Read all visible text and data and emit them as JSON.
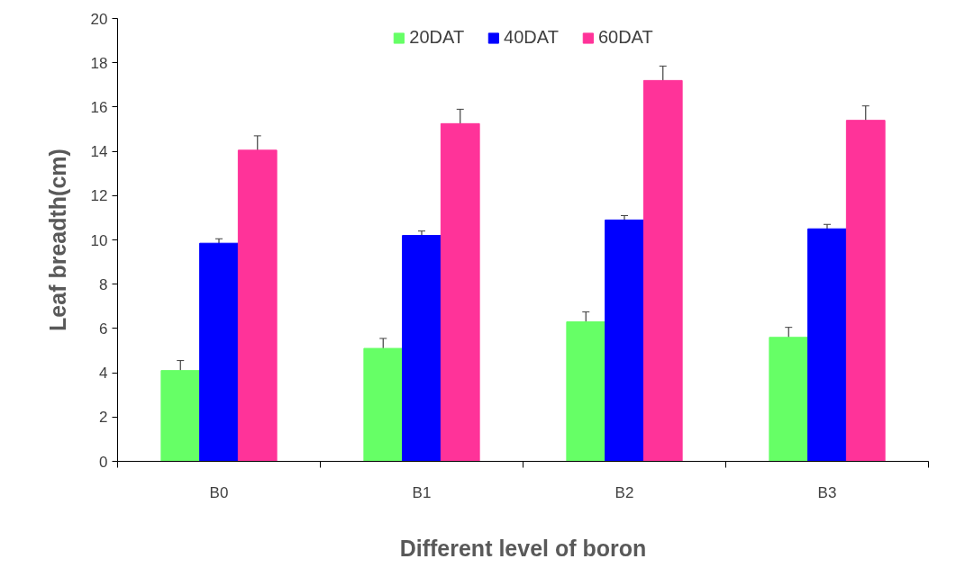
{
  "chart_data": {
    "type": "bar",
    "xlabel": "Different level of boron",
    "ylabel": "Leaf breadth(cm)",
    "categories": [
      "B0",
      "B1",
      "B2",
      "B3"
    ],
    "series": [
      {
        "name": "20DAT",
        "color": "#66ff66",
        "values": [
          4.1,
          5.1,
          6.3,
          5.6
        ],
        "errors": [
          0.45,
          0.45,
          0.45,
          0.45
        ]
      },
      {
        "name": "40DAT",
        "color": "#0000ff",
        "values": [
          9.85,
          10.2,
          10.9,
          10.5
        ],
        "errors": [
          0.2,
          0.2,
          0.2,
          0.2
        ]
      },
      {
        "name": "60DAT",
        "color": "#ff3399",
        "values": [
          14.05,
          15.25,
          17.2,
          15.4
        ],
        "errors": [
          0.65,
          0.65,
          0.65,
          0.65
        ]
      }
    ],
    "ylim": [
      0,
      20
    ],
    "yticks": [
      0,
      2,
      4,
      6,
      8,
      10,
      12,
      14,
      16,
      18,
      20
    ],
    "grid": false,
    "legend": "top"
  }
}
